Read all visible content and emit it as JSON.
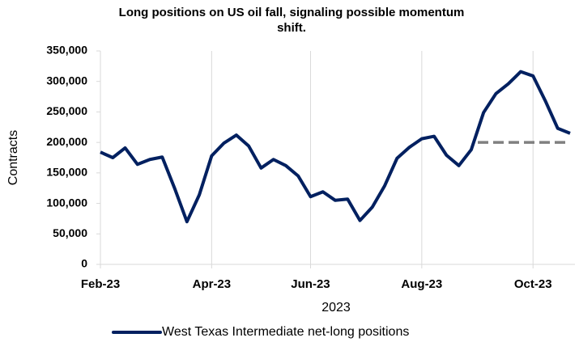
{
  "chart_data": {
    "type": "line",
    "title": "Long positions on US oil fall, signaling possible momentum shift.",
    "xlabel": "2023",
    "ylabel": "Contracts",
    "categories": [
      "Feb-23",
      null,
      null,
      null,
      null,
      null,
      null,
      null,
      null,
      "Apr-23",
      null,
      null,
      null,
      null,
      null,
      null,
      null,
      "Jun-23",
      null,
      null,
      null,
      null,
      null,
      null,
      null,
      null,
      "Aug-23",
      null,
      null,
      null,
      null,
      null,
      null,
      null,
      null,
      "Oct-23",
      null,
      null,
      null
    ],
    "series": [
      {
        "name": "West Texas Intermediate net-long positions",
        "color": "#002060",
        "values": [
          184000,
          175000,
          191000,
          164000,
          172000,
          176000,
          125000,
          70000,
          114000,
          178000,
          199000,
          212000,
          194000,
          158000,
          172000,
          162000,
          145000,
          111000,
          119000,
          105000,
          107000,
          72000,
          94000,
          129000,
          174000,
          192000,
          206000,
          210000,
          179000,
          162000,
          188000,
          249000,
          280000,
          296000,
          316000,
          309000,
          268000,
          223000,
          215000
        ]
      }
    ],
    "reference_line": {
      "value": 200000,
      "color": "#808080",
      "dashed": true
    },
    "ylim": [
      0,
      350000
    ],
    "yticks": [
      0,
      {
        "value": 50000,
        "label": "50,000"
      },
      {
        "value": 100000,
        "label": "100,000"
      },
      {
        "value": 150000,
        "label": "150,000"
      },
      {
        "value": 200000,
        "label": "200,000"
      },
      {
        "value": 250000,
        "label": "250,000"
      },
      {
        "value": 300000,
        "label": "300,000"
      },
      {
        "value": 350000,
        "label": "350,000"
      }
    ],
    "xgrid": true,
    "legend": "bottom"
  }
}
